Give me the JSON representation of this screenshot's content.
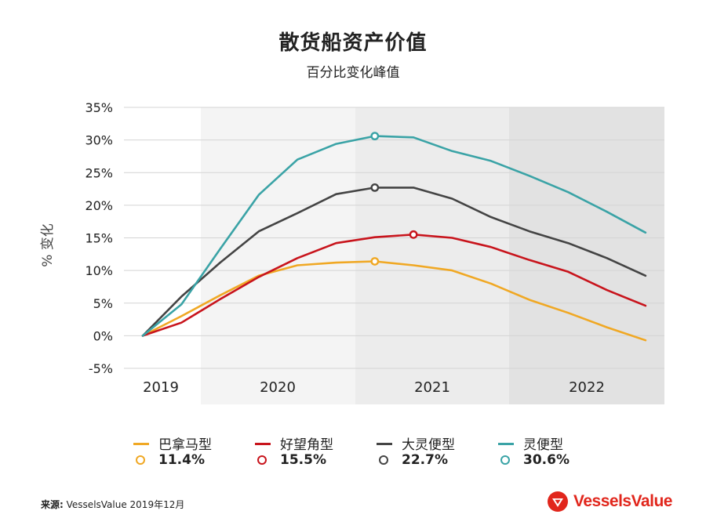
{
  "title": "散货船资产价值",
  "subtitle": "百分比变化峰值",
  "source_label": "来源:",
  "source_text": "VesselsValue 2019年12月",
  "brand": "VesselsValue",
  "colors": {
    "panamax": "#f0a824",
    "cape": "#c8141c",
    "supramax": "#444444",
    "handy": "#3aa3a6",
    "band_light": "#f4f4f4",
    "band_mid": "#ececec",
    "band_dark": "#e2e2e2",
    "brand_red": "#e1261c"
  },
  "legend": [
    {
      "name": "巴拿马型",
      "peak": "11.4%",
      "color": "#f0a824"
    },
    {
      "name": "好望角型",
      "peak": "15.5%",
      "color": "#c8141c"
    },
    {
      "name": "大灵便型",
      "peak": "22.7%",
      "color": "#444444"
    },
    {
      "name": "灵便型",
      "peak": "30.6%",
      "color": "#3aa3a6"
    }
  ],
  "chart_data": {
    "type": "line",
    "title": "散货船资产价值",
    "subtitle": "百分比变化峰值",
    "ylabel": "% 变化",
    "xlabel": "",
    "ylim": [
      -5,
      35
    ],
    "yticks": [
      -5,
      0,
      5,
      10,
      15,
      20,
      25,
      30,
      35
    ],
    "ytick_labels": [
      "-5%",
      "0%",
      "5%",
      "10%",
      "15%",
      "20%",
      "25%",
      "30%",
      "35%"
    ],
    "x_labels": [
      "2019",
      "2020",
      "2021",
      "2022"
    ],
    "grid": true,
    "x": [
      0,
      1,
      2,
      3,
      4,
      5,
      6,
      7,
      8,
      9,
      10,
      11,
      12,
      13
    ],
    "series": [
      {
        "name": "巴拿马型",
        "color": "#f0a824",
        "values": [
          0,
          3.0,
          6.2,
          9.2,
          10.8,
          11.2,
          11.4,
          10.8,
          10.0,
          8.0,
          5.5,
          3.5,
          1.3,
          -0.7
        ],
        "peak_index": 6
      },
      {
        "name": "好望角型",
        "color": "#c8141c",
        "values": [
          0,
          2.0,
          5.6,
          9.0,
          11.9,
          14.2,
          15.1,
          15.5,
          15.0,
          13.6,
          11.6,
          9.8,
          7.0,
          4.6
        ],
        "peak_index": 7
      },
      {
        "name": "大灵便型",
        "color": "#444444",
        "values": [
          0,
          6.0,
          11.2,
          16.0,
          18.8,
          21.7,
          22.7,
          22.7,
          21.0,
          18.2,
          16.0,
          14.2,
          11.9,
          9.2
        ],
        "peak_index": 6
      },
      {
        "name": "灵便型",
        "color": "#3aa3a6",
        "values": [
          0,
          4.8,
          13.3,
          21.6,
          27.0,
          29.4,
          30.6,
          30.4,
          28.3,
          26.8,
          24.5,
          22.0,
          19.0,
          15.8
        ],
        "peak_index": 6
      }
    ]
  }
}
